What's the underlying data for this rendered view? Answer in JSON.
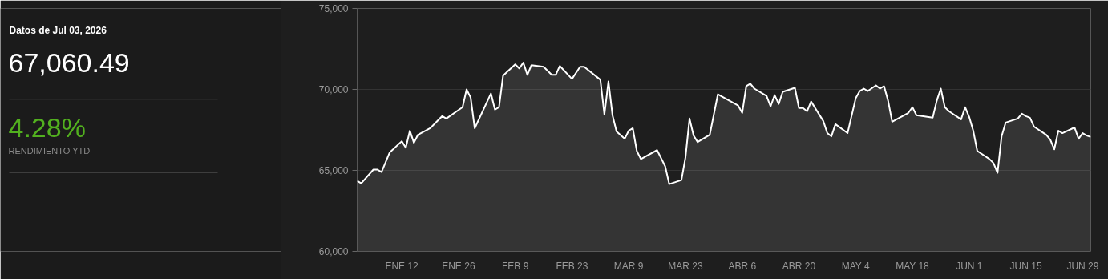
{
  "chart_data": [
    {
      "type": "other",
      "title": "Datos de Jul 03, 2026",
      "annotations": [
        "67,060.49",
        "4.28%",
        "RENDIMIENTO YTD"
      ]
    },
    {
      "type": "area",
      "grid": "y",
      "xlim": [
        "2026-01-01",
        "2026-07-01"
      ],
      "ylim": [
        60000,
        75000
      ],
      "yticks": [
        {
          "value": 60000,
          "label": "60,000"
        },
        {
          "value": 65000,
          "label": "65,000"
        },
        {
          "value": 70000,
          "label": "70,000"
        },
        {
          "value": 75000,
          "label": "75,000"
        }
      ],
      "xticks": [
        {
          "value": "2026-01-12",
          "label": "ENE 12"
        },
        {
          "value": "2026-01-26",
          "label": "ENE 26"
        },
        {
          "value": "2026-02-09",
          "label": "FEB 9"
        },
        {
          "value": "2026-02-23",
          "label": "FEB 23"
        },
        {
          "value": "2026-03-09",
          "label": "MAR 9"
        },
        {
          "value": "2026-03-23",
          "label": "MAR 23"
        },
        {
          "value": "2026-04-06",
          "label": "ABR 6"
        },
        {
          "value": "2026-04-20",
          "label": "ABR 20"
        },
        {
          "value": "2026-05-04",
          "label": "MAY 4"
        },
        {
          "value": "2026-05-18",
          "label": "MAY 18"
        },
        {
          "value": "2026-06-01",
          "label": "JUN 1"
        },
        {
          "value": "2026-06-15",
          "label": "JUN 15"
        },
        {
          "value": "2026-06-29",
          "label": "JUN 29"
        }
      ],
      "x": [
        "2026-01-01",
        "2026-01-02",
        "2026-01-05",
        "2026-01-06",
        "2026-01-07",
        "2026-01-09",
        "2026-01-12",
        "2026-01-13",
        "2026-01-14",
        "2026-01-15",
        "2026-01-16",
        "2026-01-19",
        "2026-01-22",
        "2026-01-23",
        "2026-01-27",
        "2026-01-28",
        "2026-01-29",
        "2026-01-30",
        "2026-02-03",
        "2026-02-04",
        "2026-02-05",
        "2026-02-06",
        "2026-02-09",
        "2026-02-10",
        "2026-02-11",
        "2026-02-12",
        "2026-02-13",
        "2026-02-16",
        "2026-02-18",
        "2026-02-19",
        "2026-02-20",
        "2026-02-23",
        "2026-02-25",
        "2026-02-26",
        "2026-03-02",
        "2026-03-03",
        "2026-03-04",
        "2026-03-05",
        "2026-03-06",
        "2026-03-08",
        "2026-03-09",
        "2026-03-10",
        "2026-03-11",
        "2026-03-12",
        "2026-03-16",
        "2026-03-17",
        "2026-03-18",
        "2026-03-19",
        "2026-03-22",
        "2026-03-23",
        "2026-03-24",
        "2026-03-25",
        "2026-03-26",
        "2026-03-29",
        "2026-03-31",
        "2026-04-05",
        "2026-04-06",
        "2026-04-07",
        "2026-04-08",
        "2026-04-09",
        "2026-04-12",
        "2026-04-13",
        "2026-04-14",
        "2026-04-15",
        "2026-04-16",
        "2026-04-19",
        "2026-04-20",
        "2026-04-21",
        "2026-04-22",
        "2026-04-23",
        "2026-04-26",
        "2026-04-27",
        "2026-04-28",
        "2026-04-29",
        "2026-05-02",
        "2026-05-04",
        "2026-05-05",
        "2026-05-06",
        "2026-05-07",
        "2026-05-09",
        "2026-05-10",
        "2026-05-11",
        "2026-05-12",
        "2026-05-13",
        "2026-05-17",
        "2026-05-18",
        "2026-05-19",
        "2026-05-23",
        "2026-05-24",
        "2026-05-25",
        "2026-05-26",
        "2026-05-27",
        "2026-05-30",
        "2026-05-31",
        "2026-06-01",
        "2026-06-02",
        "2026-06-03",
        "2026-06-06",
        "2026-06-07",
        "2026-06-08",
        "2026-06-09",
        "2026-06-10",
        "2026-06-13",
        "2026-06-14",
        "2026-06-15",
        "2026-06-16",
        "2026-06-17",
        "2026-06-20",
        "2026-06-21",
        "2026-06-22",
        "2026-06-23",
        "2026-06-24",
        "2026-06-27",
        "2026-06-28",
        "2026-06-29",
        "2026-06-30",
        "2026-07-01"
      ],
      "series": [
        {
          "color": "#ffffff",
          "values": [
            64350,
            64200,
            65050,
            65050,
            64900,
            66100,
            66800,
            66400,
            67450,
            66700,
            67200,
            67600,
            68350,
            68200,
            68900,
            70000,
            69500,
            67600,
            69750,
            68750,
            68900,
            70850,
            71550,
            71300,
            71650,
            70900,
            71500,
            71400,
            70900,
            70900,
            71450,
            70650,
            71400,
            71400,
            70600,
            68450,
            70500,
            68400,
            67400,
            66950,
            67450,
            67600,
            66200,
            65700,
            66250,
            65750,
            65250,
            64150,
            64400,
            65800,
            68200,
            67150,
            66750,
            67200,
            69700,
            69000,
            68550,
            70200,
            70350,
            70050,
            69600,
            68950,
            69650,
            69100,
            69850,
            70100,
            68850,
            68850,
            68650,
            69250,
            68050,
            67300,
            67100,
            67850,
            67300,
            69450,
            69900,
            70050,
            69900,
            70250,
            70050,
            70200,
            69300,
            68000,
            68550,
            68900,
            68400,
            68250,
            69300,
            70050,
            68900,
            68650,
            68150,
            68900,
            68300,
            67450,
            66200,
            65700,
            65450,
            64850,
            67100,
            67950,
            68200,
            68500,
            68350,
            68250,
            67700,
            67200,
            66900,
            66300,
            67450,
            67300,
            67650,
            66950,
            67300,
            67150,
            67060
          ]
        }
      ]
    }
  ]
}
